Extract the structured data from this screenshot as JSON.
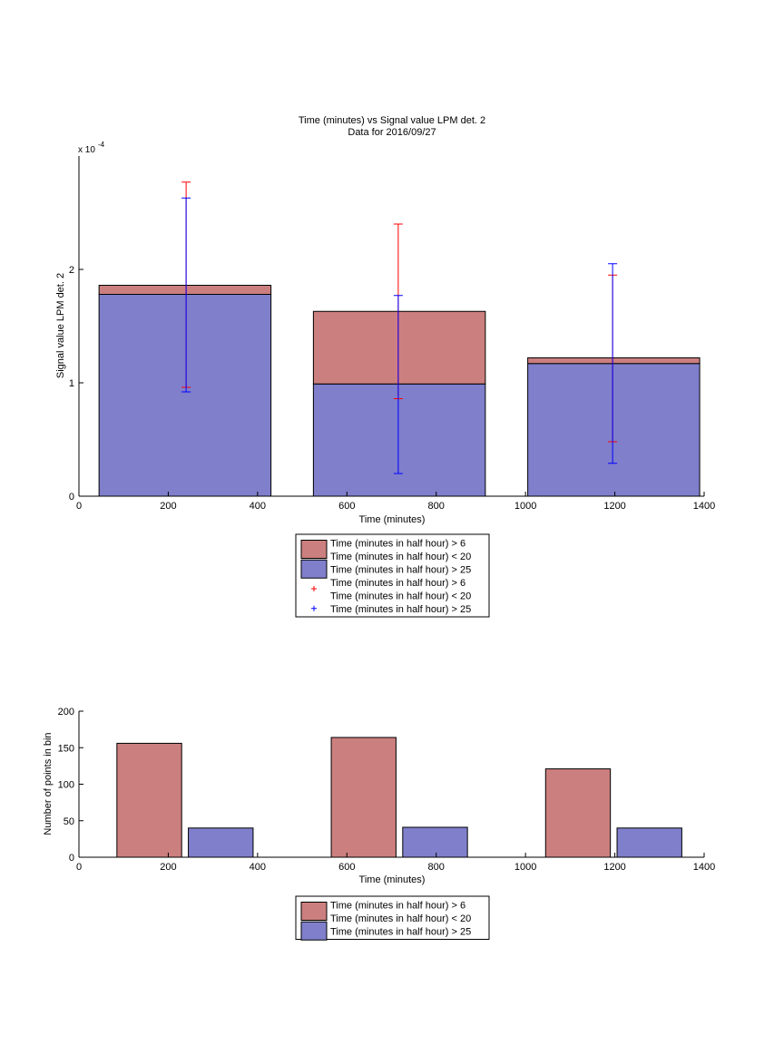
{
  "colors": {
    "red_fill": "#cc7f7f",
    "blue_fill": "#7f7fcc",
    "red_err": "#ff0000",
    "blue_err": "#0000ff",
    "axis": "#000000"
  },
  "chart_data": [
    {
      "type": "bar",
      "stacked": true,
      "title": "Time (minutes) vs Signal value LPM det. 2",
      "subtitle": "Data for 2016/09/27",
      "xlabel": "Time (minutes)",
      "ylabel": "Signal value LPM det. 2",
      "y_exponent_label": "x 10",
      "y_exponent": "-4",
      "xlim": [
        0,
        1400
      ],
      "ylim": [
        0,
        3.0
      ],
      "xticks": [
        0,
        200,
        400,
        600,
        800,
        1000,
        1200,
        1400
      ],
      "yticks": [
        0,
        1,
        2
      ],
      "grid": false,
      "legend_position": "below",
      "bars": [
        {
          "x_start": 45,
          "x_end": 430,
          "values": [
            1.78,
            0.08
          ]
        },
        {
          "x_start": 525,
          "x_end": 910,
          "values": [
            0.99,
            0.64
          ]
        },
        {
          "x_start": 1005,
          "x_end": 1390,
          "values": [
            1.17,
            0.05
          ]
        }
      ],
      "series": [
        {
          "name": "Time (minutes in half hour) > 6\nTime (minutes in half hour) < 20",
          "kind": "bar",
          "color": "#cc7f7f"
        },
        {
          "name": "Time (minutes in half hour) > 25",
          "kind": "bar",
          "color": "#7f7fcc"
        },
        {
          "name": "Time (minutes in half hour) > 6\nTime (minutes in half hour) < 20",
          "kind": "errorbar",
          "color": "#ff0000",
          "x": [
            240,
            715,
            1195
          ],
          "y": [
            1.86,
            1.63,
            1.22
          ],
          "lower": [
            0.96,
            0.86,
            0.48
          ],
          "upper": [
            2.77,
            2.4,
            1.95
          ]
        },
        {
          "name": "Time (minutes in half hour) > 25",
          "kind": "errorbar",
          "color": "#0000ff",
          "x": [
            240,
            715,
            1195
          ],
          "y": [
            1.78,
            0.99,
            1.17
          ],
          "lower": [
            0.92,
            0.2,
            0.29
          ],
          "upper": [
            2.63,
            1.77,
            2.05
          ]
        }
      ],
      "legend": [
        {
          "label1": "Time (minutes in half hour) > 6",
          "label2": "Time (minutes in half hour) < 20",
          "kind": "patch",
          "color": "#cc7f7f"
        },
        {
          "label1": "Time (minutes in half hour) > 25",
          "kind": "patch",
          "color": "#7f7fcc"
        },
        {
          "label1": "Time (minutes in half hour) > 6",
          "label2": "Time (minutes in half hour) < 20",
          "kind": "marker",
          "color": "#ff0000"
        },
        {
          "label1": "Time (minutes in half hour) > 25",
          "kind": "marker",
          "color": "#0000ff"
        }
      ]
    },
    {
      "type": "bar",
      "xlabel": "Time (minutes)",
      "ylabel": "Number of points in bin",
      "xlim": [
        0,
        1400
      ],
      "ylim": [
        0,
        200
      ],
      "xticks": [
        0,
        200,
        400,
        600,
        800,
        1000,
        1200,
        1400
      ],
      "yticks": [
        0,
        50,
        100,
        150,
        200
      ],
      "grid": false,
      "legend_position": "below",
      "series": [
        {
          "name": "Time (minutes in half hour) > 6\nTime (minutes in half hour) < 20",
          "color": "#cc7f7f",
          "x_start": [
            85,
            565,
            1045
          ],
          "x_end": [
            230,
            710,
            1190
          ],
          "values": [
            156,
            164,
            121
          ]
        },
        {
          "name": "Time (minutes in half hour) > 25",
          "color": "#7f7fcc",
          "x_start": [
            245,
            725,
            1205
          ],
          "x_end": [
            390,
            870,
            1350
          ],
          "values": [
            40,
            41,
            40
          ]
        }
      ],
      "legend": [
        {
          "label1": "Time (minutes in half hour) > 6",
          "label2": "Time (minutes in half hour) < 20",
          "kind": "patch",
          "color": "#cc7f7f"
        },
        {
          "label1": "Time (minutes in half hour) > 25",
          "kind": "patch",
          "color": "#7f7fcc"
        }
      ]
    }
  ]
}
